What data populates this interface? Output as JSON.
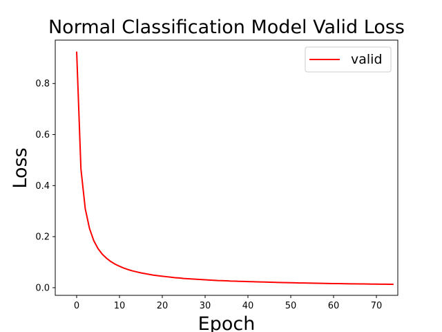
{
  "chart_data": {
    "type": "line",
    "title": "Normal Classification Model Valid Loss",
    "xlabel": "Epoch",
    "ylabel": "Loss",
    "xlim": [
      -5,
      75
    ],
    "ylim": [
      -0.03,
      0.97
    ],
    "xticks": [
      0,
      10,
      20,
      30,
      40,
      50,
      60,
      70
    ],
    "yticks": [
      0.0,
      0.2,
      0.4,
      0.6,
      0.8
    ],
    "xtick_labels": [
      "0",
      "10",
      "20",
      "30",
      "40",
      "50",
      "60",
      "70"
    ],
    "ytick_labels": [
      "0.0",
      "0.2",
      "0.4",
      "0.6",
      "0.8"
    ],
    "grid": false,
    "legend": {
      "placement": "upper right",
      "entries": [
        "valid"
      ]
    },
    "series": [
      {
        "name": "valid",
        "color": "#ff0000",
        "x": [
          0,
          1,
          2,
          3,
          4,
          5,
          6,
          7,
          8,
          9,
          10,
          11,
          12,
          13,
          14,
          15,
          16,
          17,
          18,
          19,
          20,
          21,
          22,
          23,
          24,
          25,
          26,
          27,
          28,
          29,
          30,
          31,
          32,
          33,
          34,
          35,
          36,
          37,
          38,
          39,
          40,
          41,
          42,
          43,
          44,
          45,
          46,
          47,
          48,
          49,
          50,
          51,
          52,
          53,
          54,
          55,
          56,
          57,
          58,
          59,
          60,
          61,
          62,
          63,
          64,
          65,
          66,
          67,
          68,
          69,
          70,
          71,
          72,
          73,
          74
        ],
        "values": [
          0.925,
          0.465,
          0.31,
          0.232,
          0.184,
          0.153,
          0.131,
          0.115,
          0.102,
          0.092,
          0.084,
          0.077,
          0.071,
          0.066,
          0.062,
          0.058,
          0.055,
          0.052,
          0.049,
          0.047,
          0.045,
          0.043,
          0.041,
          0.039,
          0.038,
          0.036,
          0.035,
          0.034,
          0.033,
          0.032,
          0.031,
          0.03,
          0.029,
          0.028,
          0.0275,
          0.027,
          0.026,
          0.0255,
          0.025,
          0.0245,
          0.024,
          0.0235,
          0.023,
          0.0225,
          0.022,
          0.0215,
          0.021,
          0.0205,
          0.02,
          0.0197,
          0.0193,
          0.019,
          0.0186,
          0.0183,
          0.018,
          0.0177,
          0.0174,
          0.0171,
          0.0168,
          0.0165,
          0.0162,
          0.016,
          0.0157,
          0.0155,
          0.0152,
          0.015,
          0.0148,
          0.0146,
          0.0144,
          0.0142,
          0.014,
          0.0138,
          0.0136,
          0.0134,
          0.0132
        ]
      }
    ]
  }
}
